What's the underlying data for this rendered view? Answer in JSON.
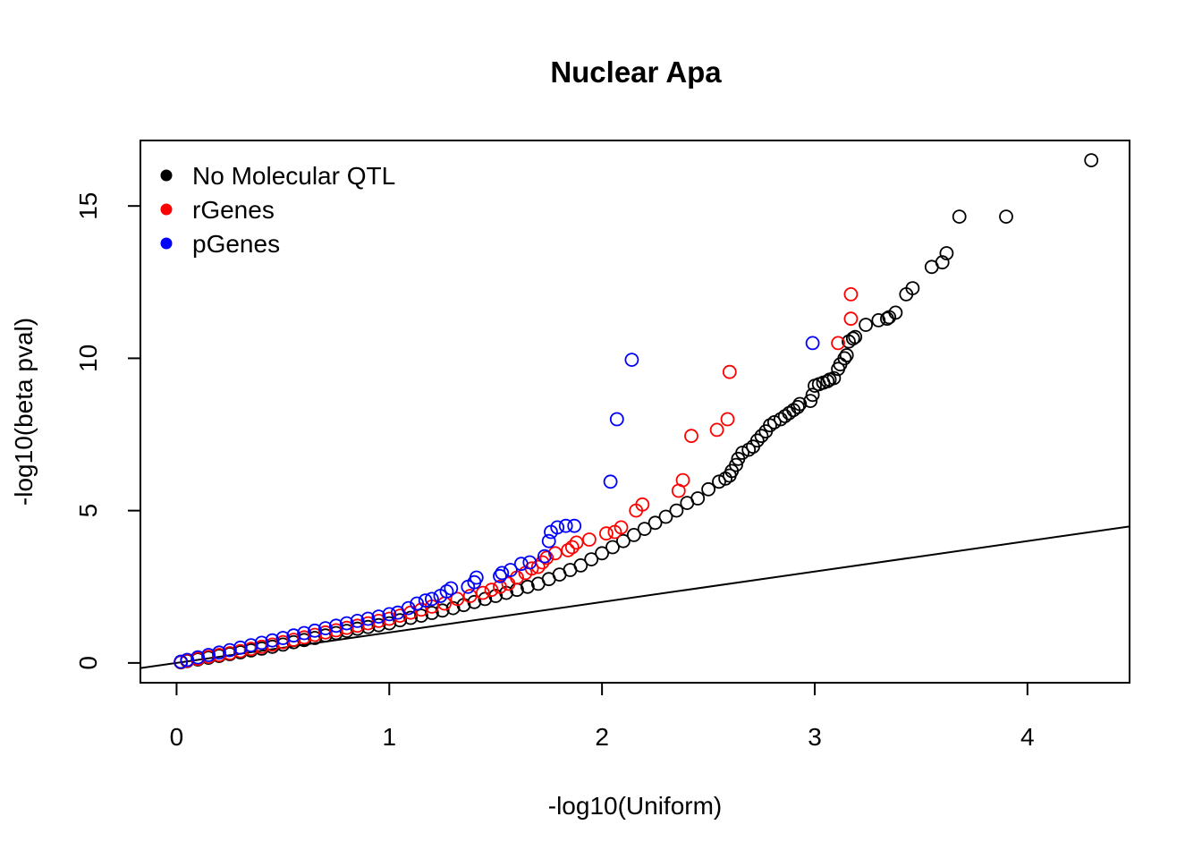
{
  "chart_data": {
    "type": "scatter",
    "title": "Nuclear Apa",
    "xlabel": "-log10(Uniform)",
    "ylabel": "-log10(beta pval)",
    "xlim": [
      -0.17,
      4.48
    ],
    "ylim": [
      -0.65,
      17.15
    ],
    "x_ticks": [
      "0",
      "1",
      "2",
      "3",
      "4"
    ],
    "y_ticks": [
      "0",
      "5",
      "10",
      "15"
    ],
    "legend_position": "top-left",
    "reference_line": "y = x",
    "series": [
      {
        "name": "No Molecular QTL",
        "color": "#000000",
        "points": [
          [
            4.3,
            16.5
          ],
          [
            3.9,
            14.65
          ],
          [
            3.68,
            14.65
          ],
          [
            3.62,
            13.45
          ],
          [
            3.6,
            13.15
          ],
          [
            3.55,
            13.0
          ],
          [
            3.46,
            12.3
          ],
          [
            3.43,
            12.1
          ],
          [
            3.38,
            11.5
          ],
          [
            3.35,
            11.35
          ],
          [
            3.34,
            11.3
          ],
          [
            3.3,
            11.25
          ],
          [
            3.24,
            11.1
          ],
          [
            3.19,
            10.7
          ],
          [
            3.18,
            10.65
          ],
          [
            3.16,
            10.55
          ],
          [
            3.15,
            10.1
          ],
          [
            3.14,
            10.0
          ],
          [
            3.12,
            9.8
          ],
          [
            3.11,
            9.65
          ],
          [
            3.09,
            9.35
          ],
          [
            3.07,
            9.3
          ],
          [
            3.06,
            9.25
          ],
          [
            3.04,
            9.2
          ],
          [
            3.02,
            9.15
          ],
          [
            3.0,
            9.1
          ],
          [
            2.99,
            8.8
          ],
          [
            2.98,
            8.6
          ],
          [
            2.93,
            8.5
          ],
          [
            2.92,
            8.4
          ],
          [
            2.9,
            8.3
          ],
          [
            2.88,
            8.2
          ],
          [
            2.86,
            8.1
          ],
          [
            2.84,
            8.0
          ],
          [
            2.81,
            7.9
          ],
          [
            2.79,
            7.8
          ],
          [
            2.77,
            7.6
          ],
          [
            2.75,
            7.45
          ],
          [
            2.73,
            7.3
          ],
          [
            2.71,
            7.1
          ],
          [
            2.69,
            7.0
          ],
          [
            2.66,
            6.9
          ],
          [
            2.64,
            6.7
          ],
          [
            2.63,
            6.5
          ],
          [
            2.61,
            6.3
          ],
          [
            2.6,
            6.15
          ],
          [
            2.58,
            6.05
          ],
          [
            2.55,
            5.95
          ],
          [
            2.5,
            5.7
          ],
          [
            2.45,
            5.4
          ],
          [
            2.4,
            5.25
          ],
          [
            2.35,
            5.0
          ],
          [
            2.3,
            4.8
          ],
          [
            2.25,
            4.6
          ],
          [
            2.2,
            4.4
          ],
          [
            2.15,
            4.2
          ],
          [
            2.1,
            4.0
          ],
          [
            2.05,
            3.8
          ],
          [
            2.0,
            3.6
          ],
          [
            1.95,
            3.4
          ],
          [
            1.9,
            3.2
          ],
          [
            1.85,
            3.05
          ],
          [
            1.8,
            2.9
          ],
          [
            1.75,
            2.75
          ],
          [
            1.7,
            2.6
          ],
          [
            1.65,
            2.5
          ],
          [
            1.6,
            2.4
          ],
          [
            1.55,
            2.3
          ],
          [
            1.5,
            2.2
          ],
          [
            1.45,
            2.1
          ],
          [
            1.4,
            2.0
          ],
          [
            1.35,
            1.9
          ],
          [
            1.3,
            1.8
          ],
          [
            1.25,
            1.72
          ],
          [
            1.2,
            1.64
          ],
          [
            1.15,
            1.55
          ],
          [
            1.1,
            1.48
          ],
          [
            1.05,
            1.4
          ],
          [
            1.0,
            1.3
          ],
          [
            0.95,
            1.24
          ],
          [
            0.9,
            1.18
          ],
          [
            0.85,
            1.12
          ],
          [
            0.8,
            1.05
          ],
          [
            0.75,
            0.98
          ],
          [
            0.7,
            0.9
          ],
          [
            0.65,
            0.82
          ],
          [
            0.6,
            0.75
          ],
          [
            0.55,
            0.68
          ],
          [
            0.5,
            0.6
          ],
          [
            0.45,
            0.53
          ],
          [
            0.4,
            0.47
          ],
          [
            0.35,
            0.41
          ],
          [
            0.3,
            0.35
          ],
          [
            0.25,
            0.29
          ],
          [
            0.2,
            0.23
          ],
          [
            0.15,
            0.17
          ],
          [
            0.1,
            0.11
          ],
          [
            0.05,
            0.06
          ],
          [
            0.02,
            0.02
          ]
        ]
      },
      {
        "name": "rGenes",
        "color": "#ff0000",
        "points": [
          [
            3.17,
            12.1
          ],
          [
            3.17,
            11.3
          ],
          [
            3.11,
            10.5
          ],
          [
            2.6,
            9.55
          ],
          [
            2.59,
            8.0
          ],
          [
            2.54,
            7.65
          ],
          [
            2.42,
            7.45
          ],
          [
            2.38,
            6.0
          ],
          [
            2.36,
            5.65
          ],
          [
            2.19,
            5.2
          ],
          [
            2.16,
            5.0
          ],
          [
            2.09,
            4.45
          ],
          [
            2.06,
            4.3
          ],
          [
            2.02,
            4.25
          ],
          [
            1.94,
            4.05
          ],
          [
            1.88,
            3.95
          ],
          [
            1.86,
            3.8
          ],
          [
            1.84,
            3.7
          ],
          [
            1.78,
            3.6
          ],
          [
            1.74,
            3.45
          ],
          [
            1.72,
            3.3
          ],
          [
            1.7,
            3.15
          ],
          [
            1.67,
            3.1
          ],
          [
            1.64,
            2.95
          ],
          [
            1.6,
            2.8
          ],
          [
            1.56,
            2.6
          ],
          [
            1.52,
            2.5
          ],
          [
            1.48,
            2.4
          ],
          [
            1.44,
            2.3
          ],
          [
            1.38,
            2.2
          ],
          [
            1.32,
            2.1
          ],
          [
            1.26,
            1.95
          ],
          [
            1.2,
            1.85
          ],
          [
            1.15,
            1.75
          ],
          [
            1.1,
            1.65
          ],
          [
            1.05,
            1.55
          ],
          [
            1.0,
            1.45
          ],
          [
            0.95,
            1.38
          ],
          [
            0.9,
            1.3
          ],
          [
            0.85,
            1.22
          ],
          [
            0.8,
            1.15
          ],
          [
            0.75,
            1.07
          ],
          [
            0.7,
            1.0
          ],
          [
            0.65,
            0.92
          ],
          [
            0.6,
            0.84
          ],
          [
            0.55,
            0.76
          ],
          [
            0.5,
            0.68
          ],
          [
            0.45,
            0.6
          ],
          [
            0.4,
            0.53
          ],
          [
            0.35,
            0.46
          ],
          [
            0.3,
            0.39
          ],
          [
            0.25,
            0.32
          ],
          [
            0.2,
            0.26
          ],
          [
            0.15,
            0.2
          ],
          [
            0.1,
            0.13
          ],
          [
            0.05,
            0.07
          ],
          [
            0.02,
            0.03
          ]
        ]
      },
      {
        "name": "pGenes",
        "color": "#0000ff",
        "points": [
          [
            2.99,
            10.5
          ],
          [
            2.14,
            9.95
          ],
          [
            2.07,
            8.0
          ],
          [
            2.04,
            5.95
          ],
          [
            1.87,
            4.5
          ],
          [
            1.83,
            4.5
          ],
          [
            1.79,
            4.45
          ],
          [
            1.76,
            4.3
          ],
          [
            1.75,
            4.0
          ],
          [
            1.73,
            3.5
          ],
          [
            1.66,
            3.3
          ],
          [
            1.62,
            3.25
          ],
          [
            1.57,
            3.05
          ],
          [
            1.53,
            2.95
          ],
          [
            1.52,
            2.85
          ],
          [
            1.41,
            2.8
          ],
          [
            1.4,
            2.65
          ],
          [
            1.37,
            2.5
          ],
          [
            1.29,
            2.45
          ],
          [
            1.27,
            2.35
          ],
          [
            1.24,
            2.2
          ],
          [
            1.2,
            2.1
          ],
          [
            1.17,
            2.05
          ],
          [
            1.13,
            1.95
          ],
          [
            1.09,
            1.8
          ],
          [
            1.04,
            1.65
          ],
          [
            1.0,
            1.6
          ],
          [
            0.95,
            1.52
          ],
          [
            0.9,
            1.45
          ],
          [
            0.85,
            1.38
          ],
          [
            0.8,
            1.3
          ],
          [
            0.75,
            1.22
          ],
          [
            0.7,
            1.14
          ],
          [
            0.65,
            1.06
          ],
          [
            0.6,
            0.98
          ],
          [
            0.55,
            0.9
          ],
          [
            0.5,
            0.82
          ],
          [
            0.45,
            0.74
          ],
          [
            0.4,
            0.66
          ],
          [
            0.35,
            0.58
          ],
          [
            0.3,
            0.5
          ],
          [
            0.25,
            0.42
          ],
          [
            0.2,
            0.34
          ],
          [
            0.15,
            0.26
          ],
          [
            0.1,
            0.18
          ],
          [
            0.05,
            0.1
          ],
          [
            0.02,
            0.04
          ]
        ]
      }
    ]
  }
}
